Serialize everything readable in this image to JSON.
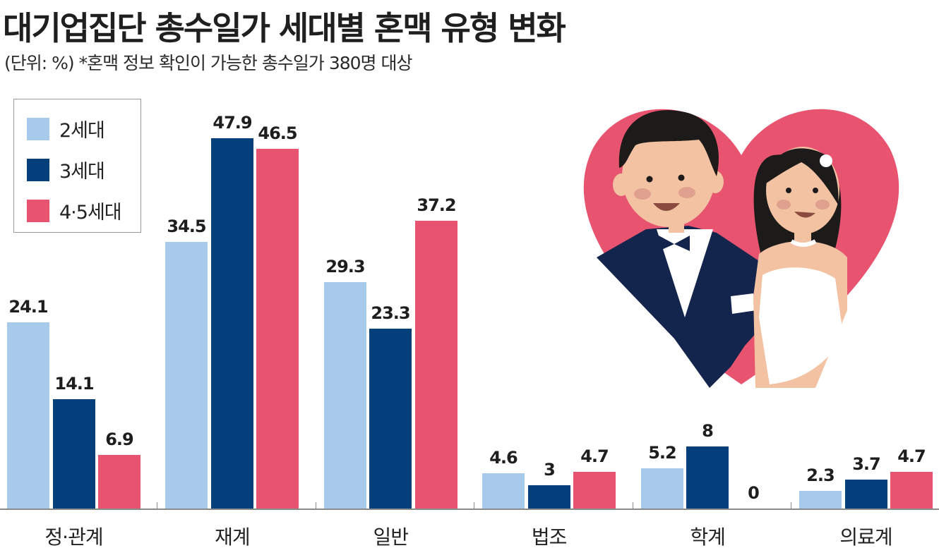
{
  "header": {
    "title": "대기업집단 총수일가 세대별 혼맥 유형 변화",
    "subtitle": "(단위: %) *혼맥 정보 확인이 가능한 총수일가 380명 대상"
  },
  "legend": [
    {
      "label": "2세대",
      "color": "#a6c9ec"
    },
    {
      "label": "3세대",
      "color": "#033f7b"
    },
    {
      "label": "4·5세대",
      "color": "#e85470"
    }
  ],
  "illustration": {
    "icon": "wedding-couple-heart-icon",
    "heart_color": "#e85470"
  },
  "chart_data": {
    "type": "bar",
    "title": "대기업집단 총수일가 세대별 혼맥 유형 변화",
    "subtitle": "(단위: %) *혼맥 정보 확인이 가능한 총수일가 380명 대상",
    "xlabel": "",
    "ylabel": "%",
    "ylim": [
      0,
      50
    ],
    "grid": false,
    "legend_position": "top-left",
    "categories": [
      "정·관계",
      "재계",
      "일반",
      "법조",
      "학계",
      "의료계"
    ],
    "series": [
      {
        "name": "2세대",
        "color": "#a6c9ec",
        "values": [
          24.1,
          34.5,
          29.3,
          4.6,
          5.2,
          2.3
        ],
        "labels": [
          "24.1",
          "34.5",
          "29.3",
          "4.6",
          "5.2",
          "2.3"
        ]
      },
      {
        "name": "3세대",
        "color": "#033f7b",
        "values": [
          14.1,
          47.9,
          23.3,
          3,
          8,
          3.7
        ],
        "labels": [
          "14.1",
          "47.9",
          "23.3",
          "3",
          "8",
          "3.7"
        ]
      },
      {
        "name": "4·5세대",
        "color": "#e85470",
        "values": [
          6.9,
          46.5,
          37.2,
          4.7,
          0,
          4.7
        ],
        "labels": [
          "6.9",
          "46.5",
          "37.2",
          "4.7",
          "0",
          "4.7"
        ]
      }
    ]
  }
}
